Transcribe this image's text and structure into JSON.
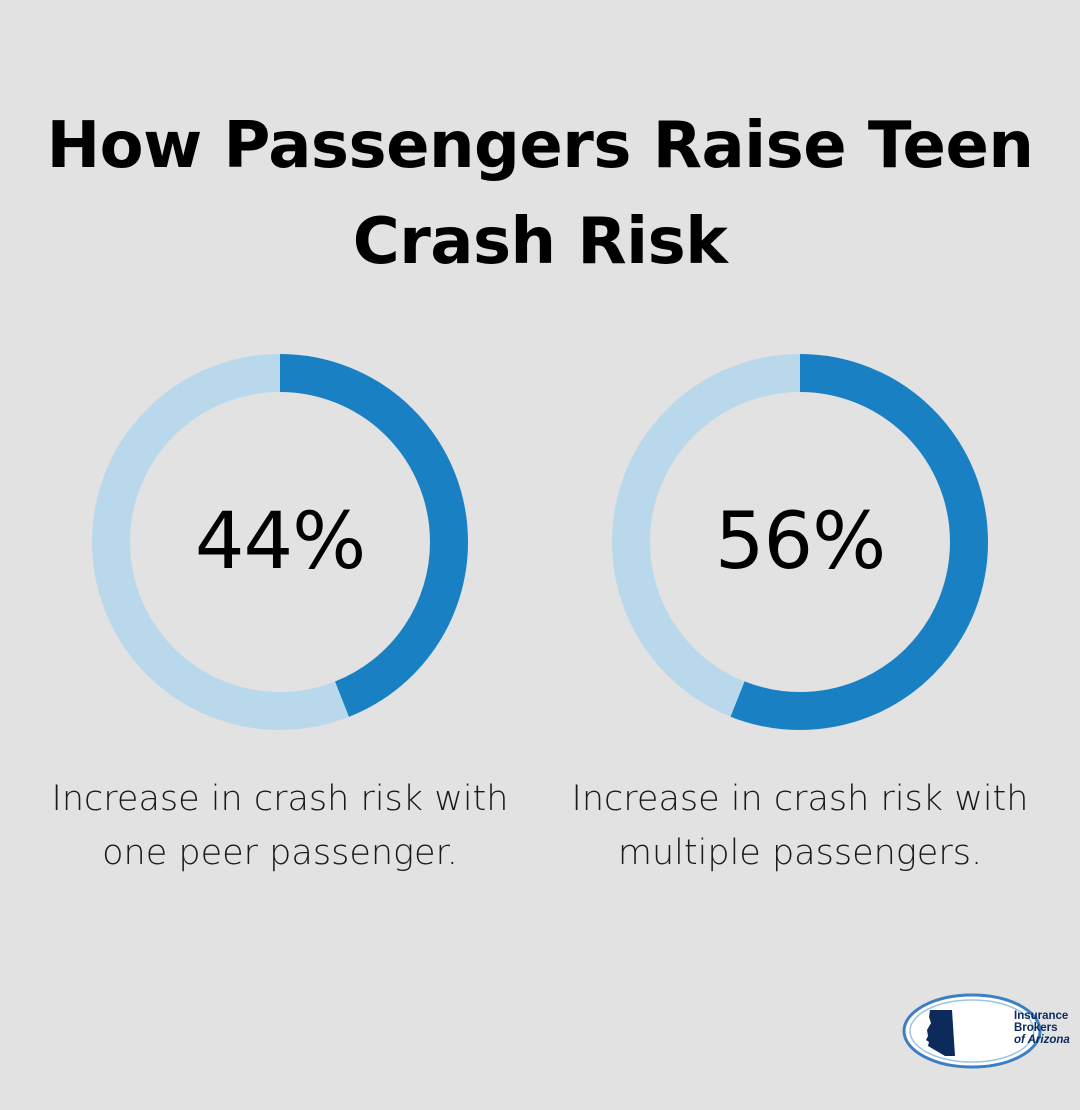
{
  "title": "How Passengers Raise Teen Crash Risk",
  "colors": {
    "background": "#e1e2e1",
    "ring_fill": "#1a80c4",
    "ring_track": "#bad8ec",
    "logo_blue": "#0c2a5c"
  },
  "chart_data": [
    {
      "type": "pie",
      "style": "donut",
      "value": 44,
      "label": "44%",
      "caption": "Increase in crash risk with one peer passenger."
    },
    {
      "type": "pie",
      "style": "donut",
      "value": 56,
      "label": "56%",
      "caption": "Increase in crash risk with multiple passengers."
    }
  ],
  "logo": {
    "line1": "Insurance",
    "line2": "Brokers",
    "line3": "of Arizona",
    "icon": "arizona-state-icon"
  }
}
